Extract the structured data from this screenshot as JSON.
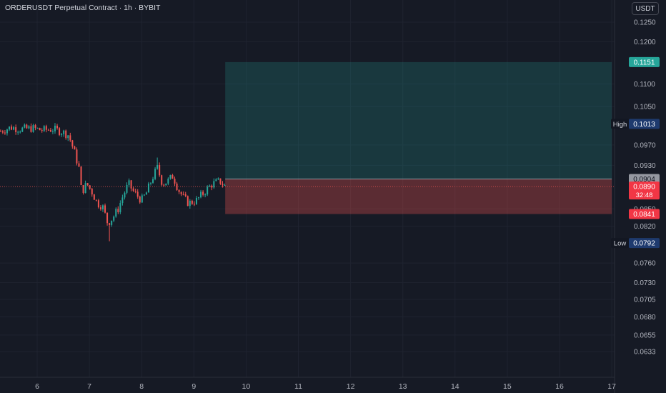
{
  "header": {
    "title": "ORDERUSDT Perpetual Contract · 1h · BYBIT",
    "currency": "USDT"
  },
  "chart_data": {
    "type": "candlestick",
    "title": "ORDERUSDT Perpetual Contract · 1h · BYBIT",
    "x_ticks": [
      "6",
      "7",
      "8",
      "9",
      "10",
      "11",
      "12",
      "13",
      "14",
      "15",
      "16",
      "17"
    ],
    "y_ticks": [
      "0.1250",
      "0.1200",
      "0.1100",
      "0.1050",
      "0.0970",
      "0.0930",
      "0.0850",
      "0.0820",
      "0.0760",
      "0.0730",
      "0.0705",
      "0.0680",
      "0.0655",
      "0.0633"
    ],
    "y_tick_values": [
      0.125,
      0.12,
      0.11,
      0.105,
      0.097,
      0.093,
      0.085,
      0.082,
      0.076,
      0.073,
      0.0705,
      0.068,
      0.0655,
      0.0633
    ],
    "y_scale": "log",
    "x_range_days": [
      5.3,
      17.3
    ],
    "colors": {
      "up": "#26a69a",
      "down": "#ef5350",
      "background": "#161a25",
      "grid": "#1f2330"
    },
    "close_series": [
      [
        5.3,
        0.0998
      ],
      [
        5.5,
        0.1006
      ],
      [
        5.7,
        0.1002
      ],
      [
        5.9,
        0.1004
      ],
      [
        6.1,
        0.1
      ],
      [
        6.3,
        0.1002
      ],
      [
        6.45,
        0.0998
      ],
      [
        6.6,
        0.099
      ],
      [
        6.7,
        0.096
      ],
      [
        6.8,
        0.0925
      ],
      [
        6.85,
        0.088
      ],
      [
        6.95,
        0.0895
      ],
      [
        7.05,
        0.088
      ],
      [
        7.15,
        0.086
      ],
      [
        7.25,
        0.0855
      ],
      [
        7.35,
        0.0825
      ],
      [
        7.45,
        0.0835
      ],
      [
        7.55,
        0.085
      ],
      [
        7.65,
        0.0875
      ],
      [
        7.75,
        0.0895
      ],
      [
        7.85,
        0.088
      ],
      [
        8.0,
        0.0865
      ],
      [
        8.1,
        0.088
      ],
      [
        8.2,
        0.0905
      ],
      [
        8.3,
        0.0925
      ],
      [
        8.4,
        0.0895
      ],
      [
        8.5,
        0.09
      ],
      [
        8.6,
        0.091
      ],
      [
        8.7,
        0.0885
      ],
      [
        8.8,
        0.087
      ],
      [
        8.9,
        0.086
      ],
      [
        9.05,
        0.0865
      ],
      [
        9.2,
        0.088
      ],
      [
        9.35,
        0.0895
      ],
      [
        9.5,
        0.09
      ],
      [
        9.6,
        0.089
      ]
    ],
    "wick_low": {
      "x": 7.4,
      "value": 0.0795
    },
    "wick_high": {
      "x": 8.3,
      "value": 0.0945
    },
    "current_price": {
      "value": 0.089,
      "label": "0.0890",
      "countdown": "32:48"
    },
    "position": {
      "type": "long",
      "start_x": 9.6,
      "end_x": 17.0,
      "entry": {
        "value": 0.0904,
        "label": "0.0904"
      },
      "target": {
        "value": 0.1151,
        "label": "0.1151"
      },
      "stop": {
        "value": 0.0841,
        "label": "0.0841"
      }
    },
    "high": {
      "label": "High",
      "value": 0.1013,
      "value_label": "0.1013"
    },
    "low": {
      "label": "Low",
      "value": 0.0792,
      "value_label": "0.0792"
    }
  }
}
